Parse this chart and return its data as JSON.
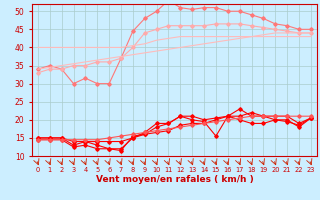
{
  "x": [
    0,
    1,
    2,
    3,
    4,
    5,
    6,
    7,
    8,
    9,
    10,
    11,
    12,
    13,
    14,
    15,
    16,
    17,
    18,
    19,
    20,
    21,
    22,
    23
  ],
  "series": [
    {
      "name": "rafales_max",
      "color": "#ff7777",
      "lw": 0.8,
      "marker": "D",
      "ms": 1.8,
      "y": [
        34,
        35,
        34,
        30,
        31.5,
        30,
        30,
        37,
        44.5,
        48,
        50,
        53,
        51,
        50.5,
        51,
        51,
        50,
        50,
        49,
        48,
        46.5,
        46,
        45,
        45
      ]
    },
    {
      "name": "rafales_moy",
      "color": "#ffaaaa",
      "lw": 0.8,
      "marker": "D",
      "ms": 1.8,
      "y": [
        33,
        34,
        34,
        35,
        35,
        36,
        36,
        37,
        40,
        44,
        45,
        46,
        46,
        46,
        46,
        46.5,
        46.5,
        46.5,
        46,
        45.5,
        45,
        44.5,
        44,
        44
      ]
    },
    {
      "name": "vent_max",
      "color": "#ffbbbb",
      "lw": 0.8,
      "marker": null,
      "ms": 0,
      "y": [
        40,
        40,
        40,
        40,
        40,
        40,
        40,
        40,
        40.5,
        41,
        42,
        42.5,
        43,
        43,
        43,
        43,
        43,
        43,
        43,
        43,
        43,
        43,
        43,
        43
      ]
    },
    {
      "name": "vent_min_line",
      "color": "#ffbbbb",
      "lw": 0.8,
      "marker": null,
      "ms": 0,
      "y": [
        34,
        34.5,
        35,
        35.5,
        36,
        36.5,
        37,
        37.5,
        38,
        38.5,
        39,
        39.5,
        40,
        40.5,
        41,
        41.5,
        42,
        42.5,
        43,
        43.5,
        44,
        44,
        44,
        44
      ]
    },
    {
      "name": "vent_moyen",
      "color": "#ff0000",
      "lw": 0.8,
      "marker": "D",
      "ms": 1.8,
      "y": [
        15,
        15,
        15,
        13,
        14,
        13,
        12,
        11.5,
        15.5,
        16,
        18,
        19,
        21,
        21,
        20,
        20.5,
        21,
        21,
        22,
        21,
        21,
        21,
        19,
        20.5
      ]
    },
    {
      "name": "vent_moyen2",
      "color": "#ff0000",
      "lw": 0.8,
      "marker": "D",
      "ms": 1.8,
      "y": [
        15,
        15,
        15,
        14,
        14,
        14,
        14,
        14,
        15,
        16,
        16.5,
        17,
        18.5,
        19,
        19,
        20,
        21,
        20,
        19,
        19,
        20,
        19.5,
        18.5,
        20.5
      ]
    },
    {
      "name": "vent_min",
      "color": "#ff0000",
      "lw": 0.8,
      "marker": "D",
      "ms": 1.8,
      "y": [
        14.5,
        14.5,
        14.5,
        12.5,
        13,
        12,
        12,
        12,
        15,
        16.5,
        19,
        19,
        21,
        20,
        19.5,
        15.5,
        21,
        23,
        21,
        21,
        20,
        20,
        18,
        20.5
      ]
    },
    {
      "name": "vent_max2",
      "color": "#ff5555",
      "lw": 0.8,
      "marker": "D",
      "ms": 1.8,
      "y": [
        14.5,
        14.5,
        14.5,
        14.5,
        14.5,
        14.5,
        15,
        15.5,
        16,
        16.5,
        17,
        17.5,
        18,
        18.5,
        19,
        19.5,
        20,
        20.5,
        21,
        21,
        21,
        21,
        21,
        21
      ]
    }
  ],
  "xlabel": "Vent moyen/en rafales ( km/h )",
  "ylim": [
    10,
    52
  ],
  "yticks": [
    10,
    15,
    20,
    25,
    30,
    35,
    40,
    45,
    50
  ],
  "xlim": [
    -0.5,
    23.5
  ],
  "bg_color": "#cceeff",
  "grid_color": "#aacccc",
  "xlabel_color": "#cc0000",
  "xlabel_fontsize": 6.5,
  "ytick_fontsize": 5.5,
  "xtick_fontsize": 4.8,
  "arrow_color": "#cc2200"
}
